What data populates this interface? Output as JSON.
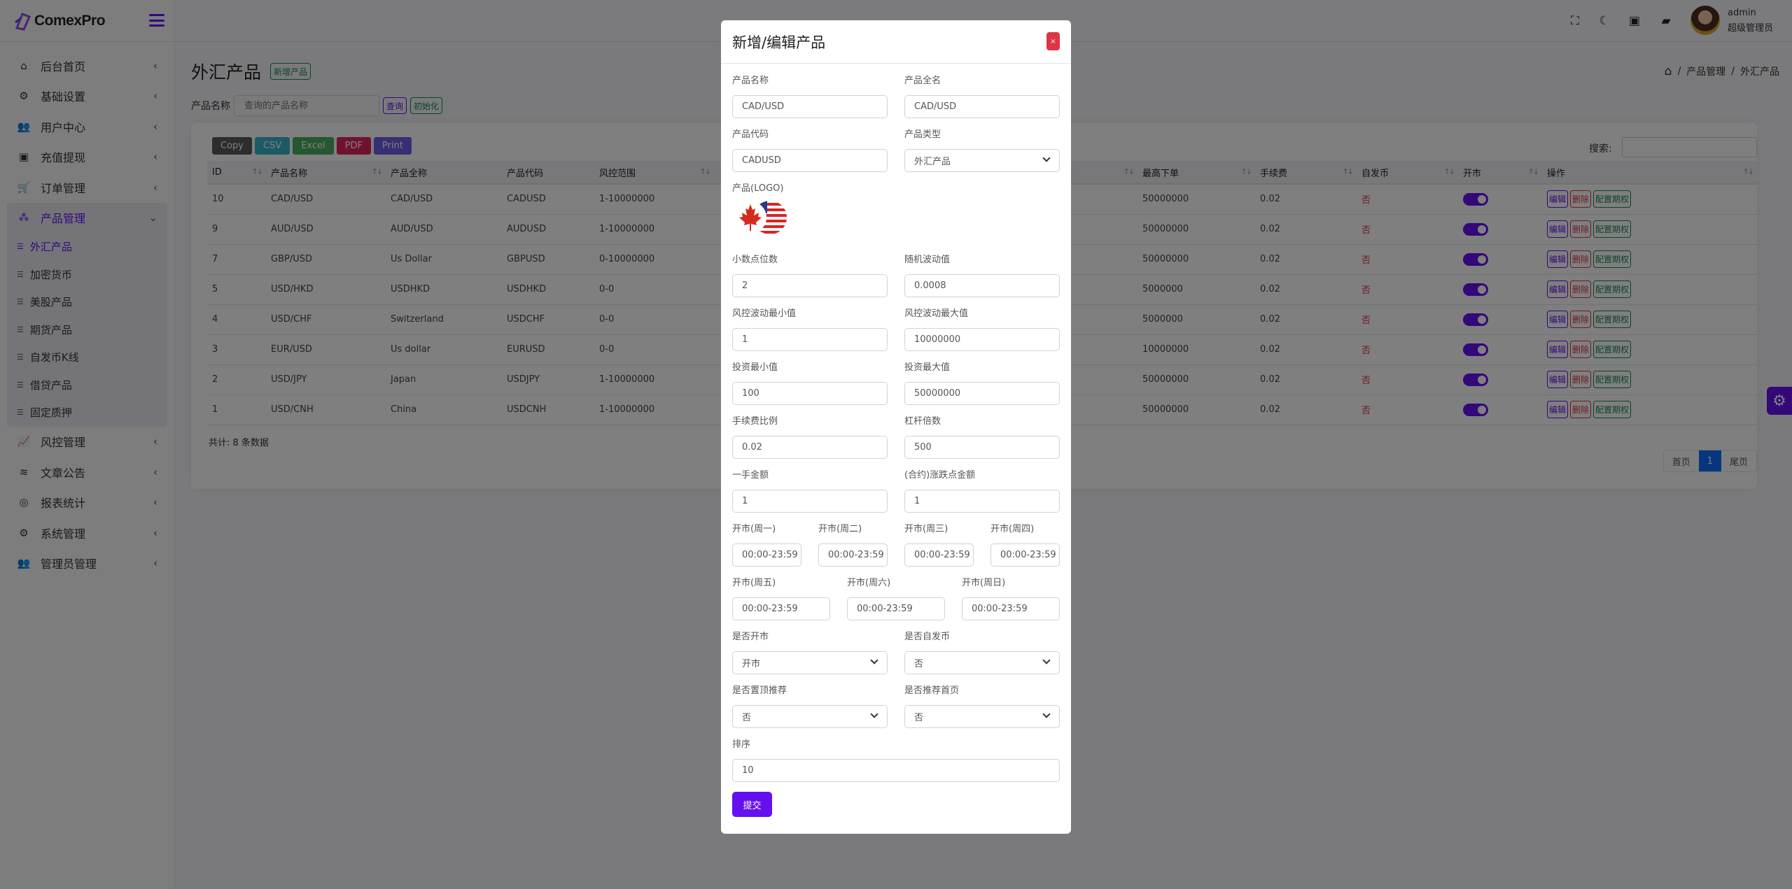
{
  "app": {
    "name": "ComexPro"
  },
  "header": {
    "user_name": "admin",
    "user_role": "超级管理员",
    "icons": [
      "fullscreen-icon",
      "moon-icon",
      "money-icon",
      "chat-icon"
    ]
  },
  "sidebar": {
    "items": [
      {
        "label": "后台首页",
        "icon": "home-icon"
      },
      {
        "label": "基础设置",
        "icon": "cogs-icon"
      },
      {
        "label": "用户中心",
        "icon": "users-icon"
      },
      {
        "label": "充值提现",
        "icon": "money-icon"
      },
      {
        "label": "订单管理",
        "icon": "cart-icon"
      },
      {
        "label": "产品管理",
        "icon": "cubes-icon",
        "expanded": true
      }
    ],
    "subitems": [
      {
        "label": "外汇产品",
        "active": true
      },
      {
        "label": "加密货币"
      },
      {
        "label": "美股产品"
      },
      {
        "label": "期货产品"
      },
      {
        "label": "自发币K线"
      },
      {
        "label": "借贷产品"
      },
      {
        "label": "固定质押"
      }
    ],
    "items_after": [
      {
        "label": "风控管理",
        "icon": "chart-line-icon"
      },
      {
        "label": "文章公告",
        "icon": "layers-icon"
      },
      {
        "label": "报表统计",
        "icon": "coins-icon"
      },
      {
        "label": "系统管理",
        "icon": "gear-icon"
      },
      {
        "label": "管理员管理",
        "icon": "users-cog-icon"
      }
    ]
  },
  "page": {
    "title": "外汇产品",
    "add_button": "新增产品",
    "breadcrumb": [
      "产品管理",
      "外汇产品"
    ],
    "filter": {
      "label": "产品名称",
      "placeholder": "查询的产品名称",
      "search_button": "查询",
      "reset_button": "初始化"
    }
  },
  "table": {
    "export_buttons": [
      "Copy",
      "CSV",
      "Excel",
      "PDF",
      "Print"
    ],
    "search_label": "搜索:",
    "columns": [
      "ID",
      "产品名称",
      "产品全称",
      "产品代码",
      "风控范围",
      "",
      "最高下单",
      "手续费",
      "自发币",
      "开市",
      "操作"
    ],
    "rows": [
      {
        "id": "10",
        "name": "CAD/USD",
        "full": "CAD/USD",
        "code": "CADUSD",
        "range": "1-10000000",
        "max": "50000000",
        "fee": "0.02",
        "self": "否",
        "open": true
      },
      {
        "id": "9",
        "name": "AUD/USD",
        "full": "AUD/USD",
        "code": "AUDUSD",
        "range": "1-10000000",
        "max": "50000000",
        "fee": "0.02",
        "self": "否",
        "open": true
      },
      {
        "id": "7",
        "name": "GBP/USD",
        "full": "Us Dollar",
        "code": "GBPUSD",
        "range": "0-10000000",
        "max": "50000000",
        "fee": "0.02",
        "self": "否",
        "open": true
      },
      {
        "id": "5",
        "name": "USD/HKD",
        "full": "USDHKD",
        "code": "USDHKD",
        "range": "0-0",
        "max": "5000000",
        "fee": "0.02",
        "self": "否",
        "open": true
      },
      {
        "id": "4",
        "name": "USD/CHF",
        "full": "Switzerland",
        "code": "USDCHF",
        "range": "0-0",
        "max": "5000000",
        "fee": "0.02",
        "self": "否",
        "open": true
      },
      {
        "id": "3",
        "name": "EUR/USD",
        "full": "Us dollar",
        "code": "EURUSD",
        "range": "0-0",
        "max": "10000000",
        "fee": "0.02",
        "self": "否",
        "open": true
      },
      {
        "id": "2",
        "name": "USD/JPY",
        "full": "Japan",
        "code": "USDJPY",
        "range": "1-10000000",
        "max": "50000000",
        "fee": "0.02",
        "self": "否",
        "open": true
      },
      {
        "id": "1",
        "name": "USD/CNH",
        "full": "China",
        "code": "USDCNH",
        "range": "1-10000000",
        "max": "50000000",
        "fee": "0.02",
        "self": "否",
        "open": true
      }
    ],
    "actions": {
      "edit": "编辑",
      "delete": "删除",
      "config": "配置期权"
    },
    "total": "共计: 8 条数据",
    "pager": {
      "first": "首页",
      "current": "1",
      "last": "尾页"
    }
  },
  "modal": {
    "title": "新增/编辑产品",
    "close": "×",
    "fields": {
      "name": {
        "label": "产品名称",
        "value": "CAD/USD"
      },
      "full_name": {
        "label": "产品全名",
        "value": "CAD/USD"
      },
      "code": {
        "label": "产品代码",
        "value": "CADUSD"
      },
      "type": {
        "label": "产品类型",
        "value": "外汇产品"
      },
      "logo": {
        "label": "产品(LOGO)"
      },
      "decimals": {
        "label": "小数点位数",
        "value": "2"
      },
      "random": {
        "label": "随机波动值",
        "value": "0.0008"
      },
      "risk_min": {
        "label": "风控波动最小值",
        "value": "1"
      },
      "risk_max": {
        "label": "风控波动最大值",
        "value": "10000000"
      },
      "invest_min": {
        "label": "投资最小值",
        "value": "100"
      },
      "invest_max": {
        "label": "投资最大值",
        "value": "50000000"
      },
      "fee_ratio": {
        "label": "手续费比例",
        "value": "0.02"
      },
      "leverage": {
        "label": "杠杆倍数",
        "value": "500"
      },
      "lot_amount": {
        "label": "一手金额",
        "value": "1"
      },
      "pip_amount": {
        "label": "(合约)涨跌点金额",
        "value": "1"
      },
      "mon": {
        "label": "开市(周一)",
        "value": "00:00-23:59"
      },
      "tue": {
        "label": "开市(周二)",
        "value": "00:00-23:59"
      },
      "wed": {
        "label": "开市(周三)",
        "value": "00:00-23:59"
      },
      "thu": {
        "label": "开市(周四)",
        "value": "00:00-23:59"
      },
      "fri": {
        "label": "开市(周五)",
        "value": "00:00-23:59"
      },
      "sat": {
        "label": "开市(周六)",
        "value": "00:00-23:59"
      },
      "sun": {
        "label": "开市(周日)",
        "value": "00:00-23:59"
      },
      "is_open": {
        "label": "是否开市",
        "value": "开市"
      },
      "is_self": {
        "label": "是否自发币",
        "value": "否"
      },
      "is_top": {
        "label": "是否置顶推荐",
        "value": "否"
      },
      "is_home": {
        "label": "是否推荐首页",
        "value": "否"
      },
      "sort": {
        "label": "排序",
        "value": "10"
      }
    },
    "submit": "提交"
  },
  "colors": {
    "accent": "#6610f2",
    "danger": "#dc3545",
    "success": "#198754",
    "primary": "#0d6efd"
  }
}
